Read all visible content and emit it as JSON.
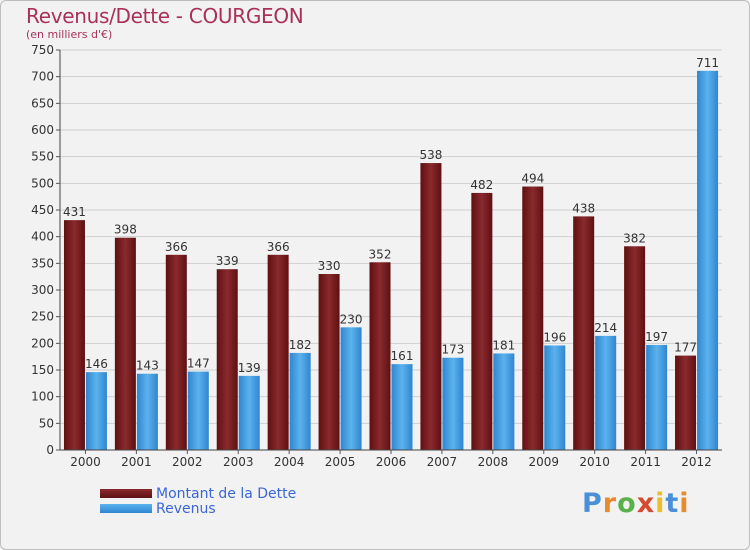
{
  "header": {
    "title": "Revenus/Dette - COURGEON",
    "subtitle": "(en milliers d'€)"
  },
  "chart_data": {
    "type": "bar",
    "categories": [
      "2000",
      "2001",
      "2002",
      "2003",
      "2004",
      "2005",
      "2006",
      "2007",
      "2008",
      "2009",
      "2010",
      "2011",
      "2012"
    ],
    "series": [
      {
        "name": "Montant de la Dette",
        "color": "#7a1f22",
        "values": [
          431,
          398,
          366,
          339,
          366,
          330,
          352,
          538,
          482,
          494,
          438,
          382,
          177
        ]
      },
      {
        "name": "Revenus",
        "color": "#4aa3e6",
        "values": [
          146,
          143,
          147,
          139,
          182,
          230,
          161,
          173,
          181,
          196,
          214,
          197,
          711
        ]
      }
    ],
    "ylim": [
      0,
      750
    ],
    "yticks": [
      0,
      50,
      100,
      150,
      200,
      250,
      300,
      350,
      400,
      450,
      500,
      550,
      600,
      650,
      700,
      750
    ],
    "grid": true,
    "legend_position": "bottom-left"
  },
  "logo": {
    "text": "Proxiti",
    "letter_colors": [
      "#4a8fd8",
      "#e98a2c",
      "#5ab04a",
      "#d64a2f",
      "#e9c02c",
      "#4a8fd8",
      "#e98a2c"
    ]
  }
}
